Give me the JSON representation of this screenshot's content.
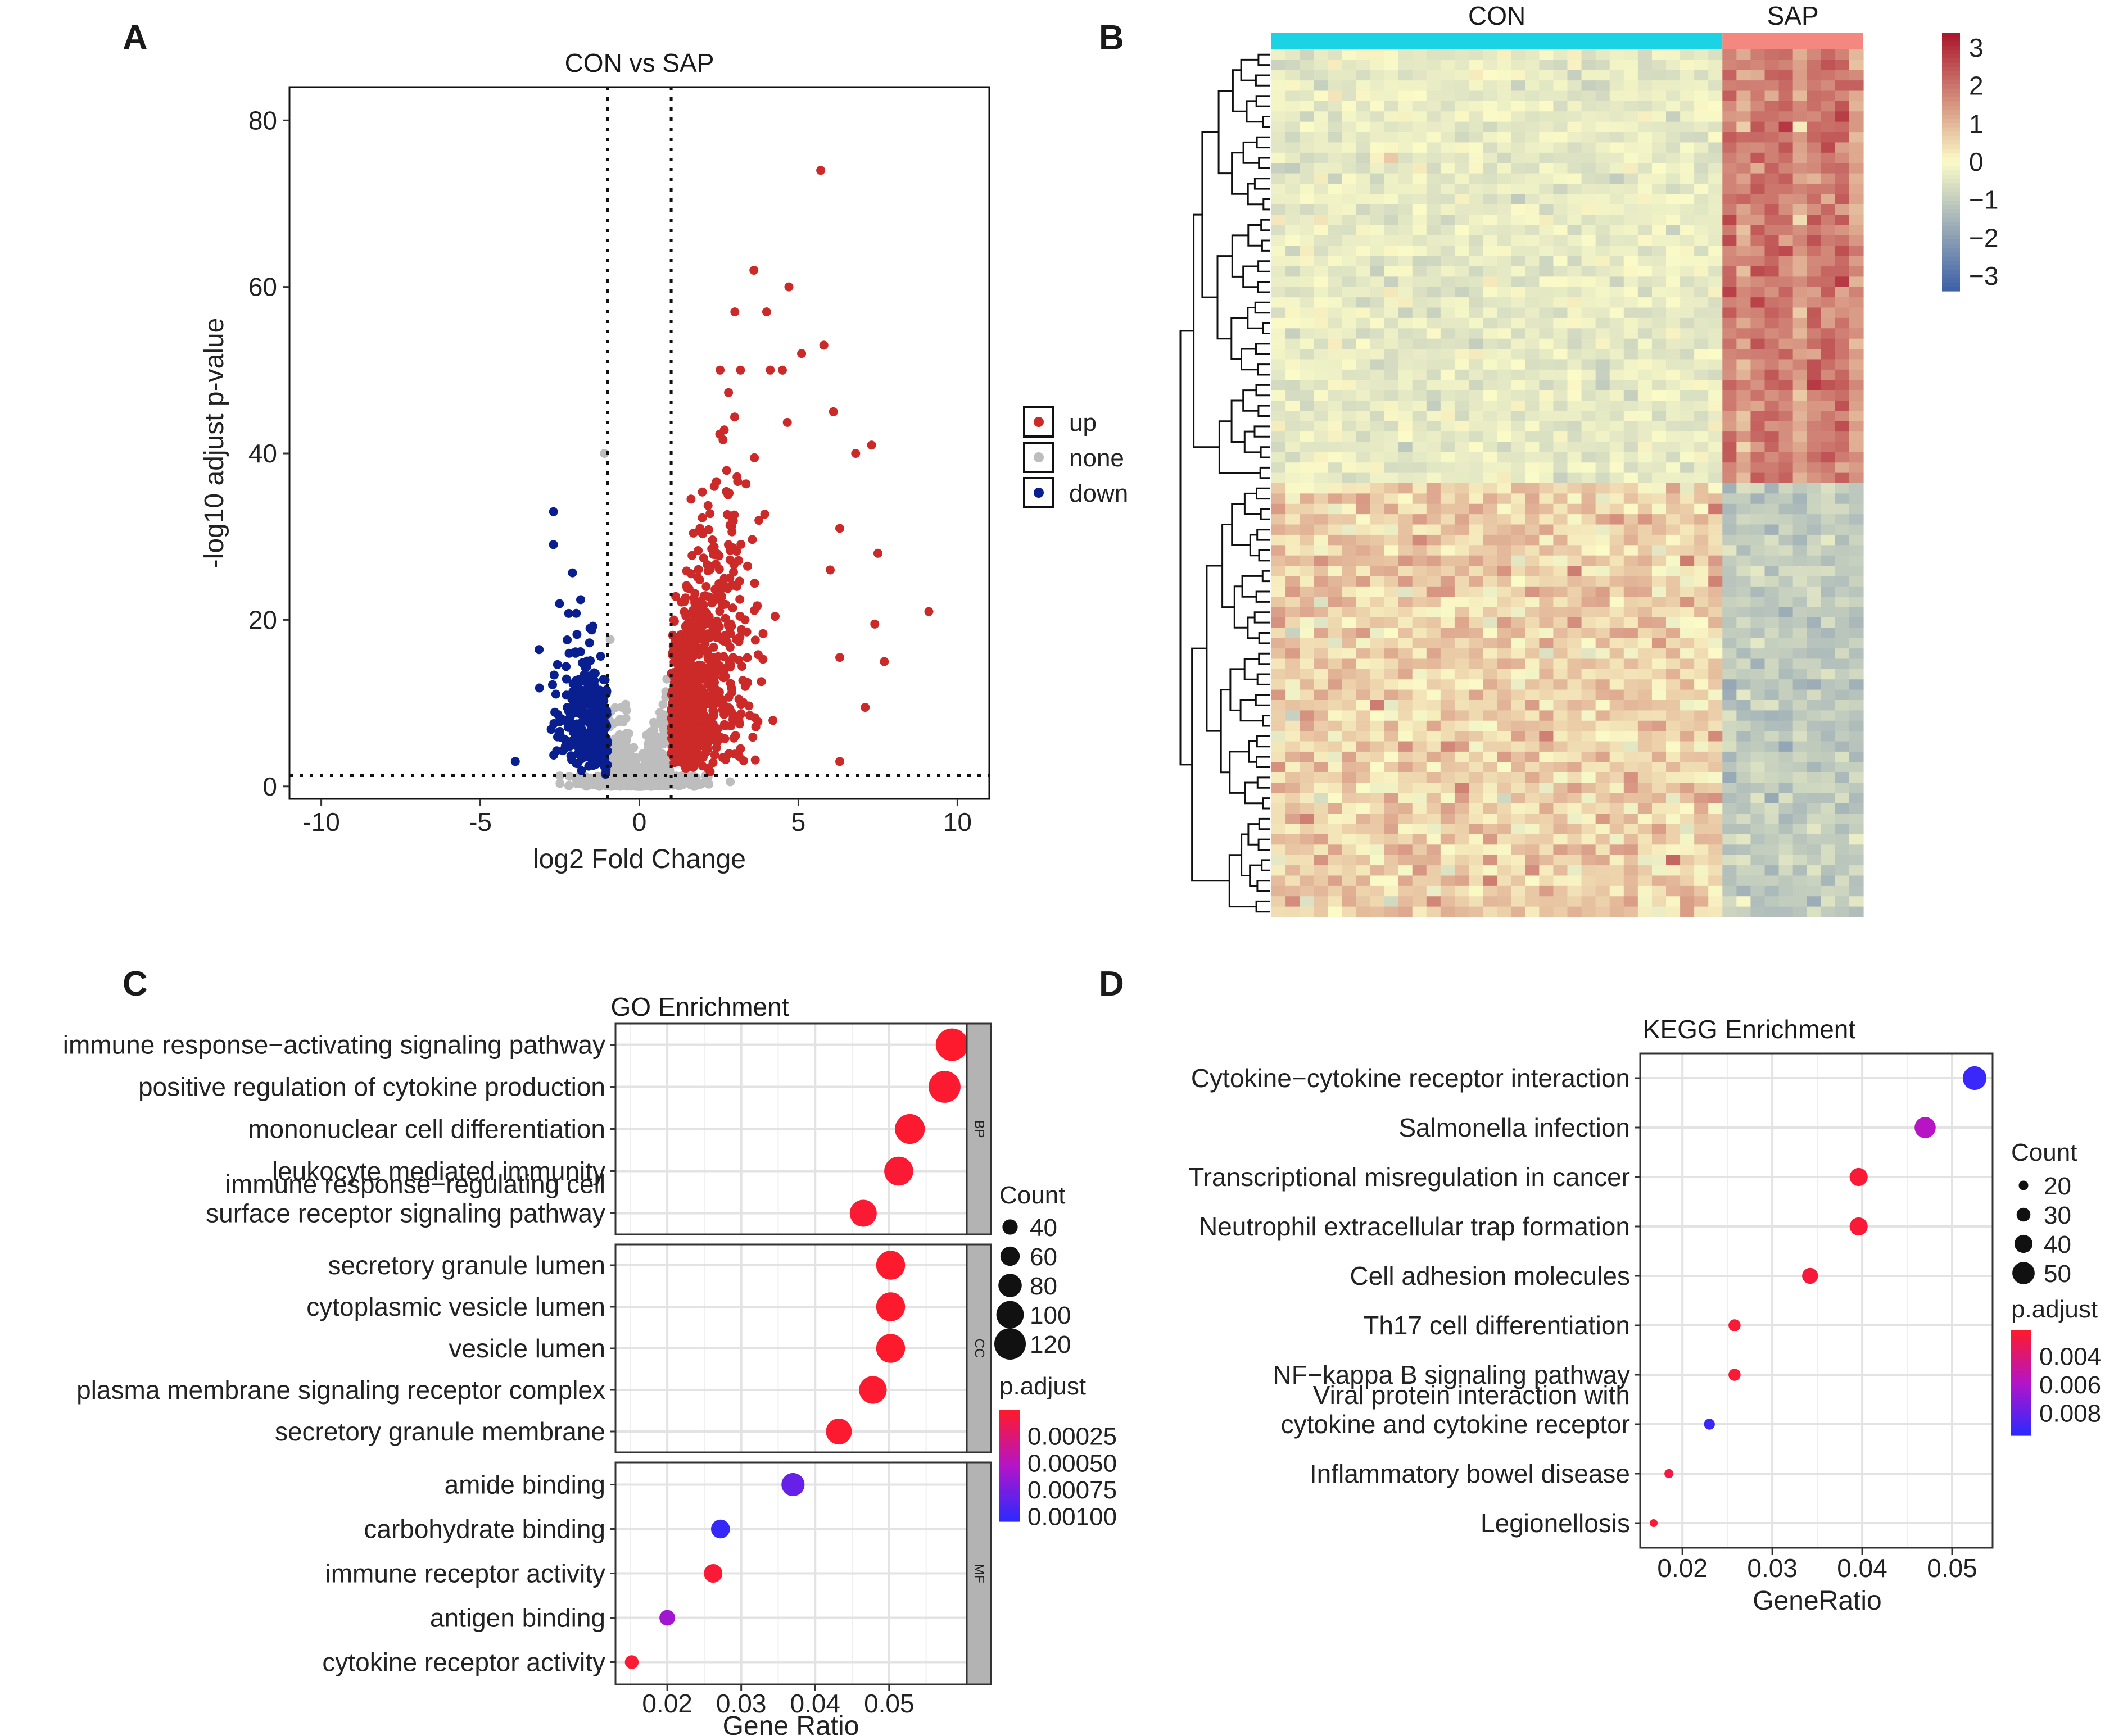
{
  "colors": {
    "up": "#cc2929",
    "none": "#bdbdbd",
    "down": "#0a1f8f",
    "con_bar": "#1cd3e3",
    "sap_bar": "#f4877f",
    "hm_low": "#3d5fa6",
    "hm_mid": "#fbfbc8",
    "hm_high": "#a9152a",
    "padj_low": "#ff1a2a",
    "padj_high": "#2a2aff"
  },
  "chart_data": [
    {
      "panel": "A",
      "type": "scatter",
      "title": "CON vs SAP",
      "xlabel": "log2 Fold Change",
      "ylabel": "-log10 adjust p-value",
      "xlim": [
        -11,
        11
      ],
      "ylim": [
        -1.5,
        84
      ],
      "xticks": [
        "-10",
        "-5",
        "0",
        "5",
        "10"
      ],
      "xtick_values": [
        -10,
        -5,
        0,
        5,
        10
      ],
      "yticks": [
        "0",
        "20",
        "40",
        "60",
        "80"
      ],
      "ytick_values": [
        0,
        20,
        40,
        60,
        80
      ],
      "thresholds": {
        "log2fc": [
          -1,
          1
        ],
        "neglog10p": 1.3
      },
      "legend": [
        {
          "key": "up",
          "label": "up"
        },
        {
          "key": "none",
          "label": "none"
        },
        {
          "key": "down",
          "label": "down"
        }
      ],
      "highlight_points": [
        {
          "x": 5.7,
          "y": 74,
          "group": "up"
        },
        {
          "x": 3.6,
          "y": 62,
          "group": "up"
        },
        {
          "x": 4.7,
          "y": 60,
          "group": "up"
        },
        {
          "x": 3.0,
          "y": 57,
          "group": "up"
        },
        {
          "x": 4.0,
          "y": 57,
          "group": "up"
        },
        {
          "x": 5.8,
          "y": 53,
          "group": "up"
        },
        {
          "x": 5.1,
          "y": 52,
          "group": "up"
        },
        {
          "x": 6.1,
          "y": 45,
          "group": "up"
        },
        {
          "x": 7.3,
          "y": 41,
          "group": "up"
        },
        {
          "x": 6.8,
          "y": 40,
          "group": "up"
        },
        {
          "x": 6.3,
          "y": 31,
          "group": "up"
        },
        {
          "x": 7.5,
          "y": 28,
          "group": "up"
        },
        {
          "x": 6.0,
          "y": 26,
          "group": "up"
        },
        {
          "x": 9.1,
          "y": 21,
          "group": "up"
        },
        {
          "x": 7.4,
          "y": 19.5,
          "group": "up"
        },
        {
          "x": 6.3,
          "y": 15.5,
          "group": "up"
        },
        {
          "x": 7.7,
          "y": 15,
          "group": "up"
        },
        {
          "x": 7.1,
          "y": 9.5,
          "group": "up"
        },
        {
          "x": 6.3,
          "y": 3,
          "group": "up"
        },
        {
          "x": -1.1,
          "y": 40,
          "group": "none"
        },
        {
          "x": -2.7,
          "y": 33,
          "group": "down"
        },
        {
          "x": -3.9,
          "y": 3,
          "group": "down"
        }
      ]
    },
    {
      "panel": "B",
      "type": "heatmap",
      "groups": [
        {
          "label": "CON",
          "columns": 32
        },
        {
          "label": "SAP",
          "columns": 10
        }
      ],
      "row_clusters": [
        {
          "name": "up_in_SAP",
          "rows": 42
        },
        {
          "name": "down_in_SAP",
          "rows": 42
        }
      ],
      "legend_ticks": [
        "3",
        "2",
        "1",
        "0",
        "−1",
        "−2",
        "−3"
      ],
      "legend_values": [
        3,
        2,
        1,
        0,
        -1,
        -2,
        -3
      ],
      "range": [
        -3.4,
        3.4
      ]
    },
    {
      "panel": "C",
      "type": "scatter",
      "title": "GO Enrichment",
      "xlabel": "Gene Ratio",
      "xlim": [
        0.013,
        0.0605
      ],
      "xticks": [
        "0.02",
        "0.03",
        "0.04",
        "0.05"
      ],
      "xtick_values": [
        0.02,
        0.03,
        0.04,
        0.05
      ],
      "facets": [
        {
          "strip": "BP",
          "terms": [
            {
              "label": "immune response−activating signaling pathway",
              "ratio": 0.0585,
              "count": 125,
              "padj": 2e-05
            },
            {
              "label": "positive regulation of cytokine production",
              "ratio": 0.0575,
              "count": 122,
              "padj": 3e-05
            },
            {
              "label": "mononuclear cell differentiation",
              "ratio": 0.0528,
              "count": 112,
              "padj": 3e-05
            },
            {
              "label": "leukocyte mediated immunity",
              "ratio": 0.0513,
              "count": 108,
              "padj": 4e-05
            },
            {
              "label": [
                "immune response−regulating cell",
                "surface receptor signaling pathway"
              ],
              "ratio": 0.0465,
              "count": 98,
              "padj": 4e-05
            }
          ]
        },
        {
          "strip": "CC",
          "terms": [
            {
              "label": "secretory granule lumen",
              "ratio": 0.0502,
              "count": 107,
              "padj": 2e-05
            },
            {
              "label": "cytoplasmic vesicle lumen",
              "ratio": 0.0502,
              "count": 107,
              "padj": 2e-05
            },
            {
              "label": "vesicle lumen",
              "ratio": 0.0502,
              "count": 107,
              "padj": 2e-05
            },
            {
              "label": "plasma membrane signaling receptor complex",
              "ratio": 0.0478,
              "count": 101,
              "padj": 3e-05
            },
            {
              "label": "secretory granule membrane",
              "ratio": 0.0432,
              "count": 92,
              "padj": 3e-05
            }
          ]
        },
        {
          "strip": "MF",
          "terms": [
            {
              "label": "amide binding",
              "ratio": 0.037,
              "count": 79,
              "padj": 0.00082
            },
            {
              "label": "carbohydrate binding",
              "ratio": 0.0272,
              "count": 58,
              "padj": 0.001
            },
            {
              "label": "immune receptor activity",
              "ratio": 0.0262,
              "count": 56,
              "padj": 5e-05
            },
            {
              "label": "antigen binding",
              "ratio": 0.02,
              "count": 42,
              "padj": 0.0006
            },
            {
              "label": "cytokine receptor activity",
              "ratio": 0.0152,
              "count": 32,
              "padj": 4e-05
            }
          ]
        }
      ],
      "size_legend": {
        "title": "Count",
        "labels": [
          "40",
          "60",
          "80",
          "100",
          "120"
        ],
        "values": [
          40,
          60,
          80,
          100,
          120
        ]
      },
      "color_legend": {
        "title": "p.adjust",
        "labels": [
          "0.00025",
          "0.00050",
          "0.00075",
          "0.00100"
        ],
        "values": [
          0.00025,
          0.0005,
          0.00075,
          0.001
        ],
        "range": [
          1e-05,
          0.00105
        ]
      }
    },
    {
      "panel": "D",
      "type": "scatter",
      "title": "KEGG Enrichment",
      "xlabel": "GeneRatio",
      "xlim": [
        0.0153,
        0.0545
      ],
      "xticks": [
        "0.02",
        "0.03",
        "0.04",
        "0.05"
      ],
      "xtick_values": [
        0.02,
        0.03,
        0.04,
        0.05
      ],
      "terms": [
        {
          "label": "Cytokine−cytokine receptor interaction",
          "ratio": 0.0525,
          "count": 53,
          "padj": 0.0092
        },
        {
          "label": "Salmonella infection",
          "ratio": 0.047,
          "count": 47,
          "padj": 0.0058
        },
        {
          "label": "Transcriptional misregulation in cancer",
          "ratio": 0.0396,
          "count": 40,
          "padj": 0.0025
        },
        {
          "label": "Neutrophil extracellular trap formation",
          "ratio": 0.0396,
          "count": 40,
          "padj": 0.0025
        },
        {
          "label": "Cell adhesion molecules",
          "ratio": 0.0342,
          "count": 35,
          "padj": 0.0026
        },
        {
          "label": "Th17 cell differentiation",
          "ratio": 0.0258,
          "count": 26,
          "padj": 0.0025
        },
        {
          "label": "NF−kappa B signaling pathway",
          "ratio": 0.0258,
          "count": 26,
          "padj": 0.0025
        },
        {
          "label": [
            "Viral protein interaction with",
            "cytokine and cytokine receptor"
          ],
          "ratio": 0.023,
          "count": 23,
          "padj": 0.0092
        },
        {
          "label": "Inflammatory bowel disease",
          "ratio": 0.0185,
          "count": 19,
          "padj": 0.0028
        },
        {
          "label": "Legionellosis",
          "ratio": 0.0168,
          "count": 16,
          "padj": 0.0024
        }
      ],
      "size_legend": {
        "title": "Count",
        "labels": [
          "20",
          "30",
          "40",
          "50"
        ],
        "values": [
          20,
          30,
          40,
          50
        ]
      },
      "color_legend": {
        "title": "p.adjust",
        "labels": [
          "0.004",
          "0.006",
          "0.008"
        ],
        "values": [
          0.004,
          0.006,
          0.008
        ],
        "range": [
          0.0022,
          0.0096
        ]
      }
    }
  ]
}
